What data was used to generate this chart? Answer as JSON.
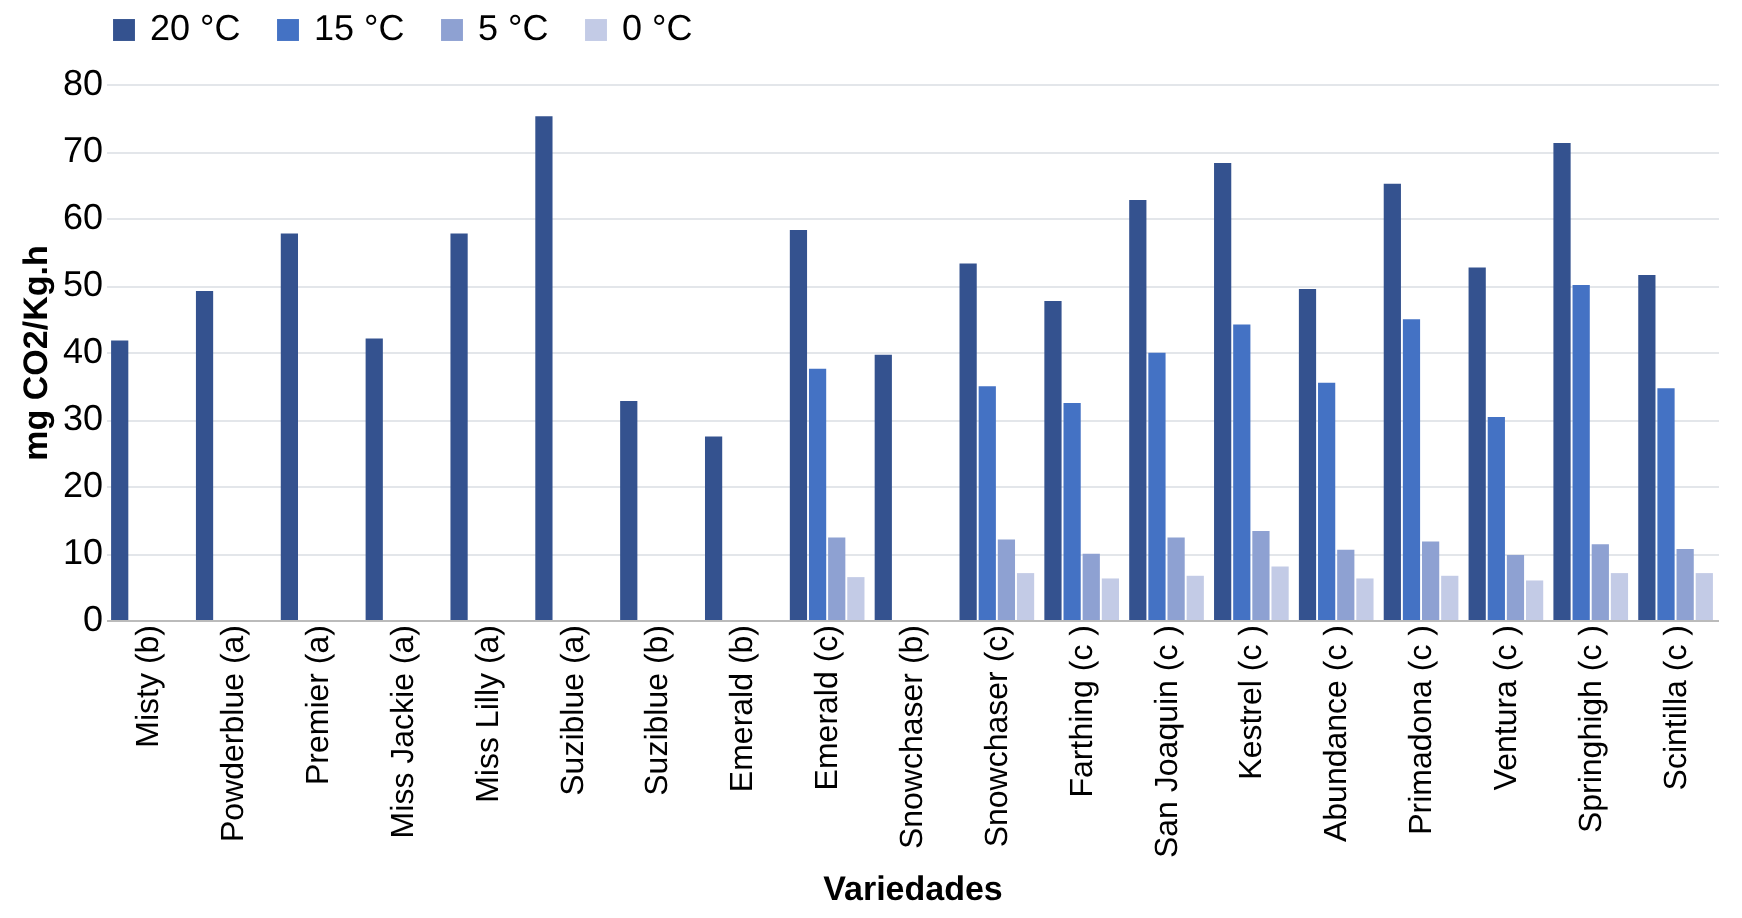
{
  "chart_data": {
    "type": "bar",
    "xlabel": "Variedades",
    "ylabel": "mg CO2/Kg.h",
    "categories": [
      "Misty (b)",
      "Powderblue  (a)",
      "Premier  (a)",
      "Miss Jackie  (a)",
      "Miss Lilly  (a)",
      "Suziblue (a)",
      "Suziblue (b)",
      "Emerald (b)",
      "Emerald (c)",
      "Snowchaser (b)",
      "Snowchaser (c)",
      "Farthing (c )",
      "San Joaquin (c )",
      "Kestrel (c )",
      "Abundance (c )",
      "Primadona (c )",
      "Ventura (c )",
      "Springhigh (c )",
      "Scintilla (c )"
    ],
    "series": [
      {
        "name": "20 °C",
        "color": "#34528f",
        "values": [
          41.7,
          49.1,
          57.7,
          42,
          57.7,
          75.2,
          32.7,
          27.4,
          58.2,
          39.6,
          53.2,
          47.6,
          62.7,
          68.2,
          49.4,
          65.1,
          52.6,
          71.2,
          51.5
        ]
      },
      {
        "name": "15 °C",
        "color": "#4472c4",
        "values": [
          null,
          null,
          null,
          null,
          null,
          null,
          null,
          null,
          37.5,
          null,
          34.9,
          32.4,
          39.9,
          44.1,
          35.4,
          44.9,
          30.3,
          50,
          34.6
        ]
      },
      {
        "name": "5 °C",
        "color": "#8ea1d2",
        "values": [
          null,
          null,
          null,
          null,
          null,
          null,
          null,
          null,
          12.3,
          null,
          12,
          9.9,
          12.3,
          13.3,
          10.5,
          11.7,
          9.7,
          11.3,
          10.6
        ]
      },
      {
        "name": "0 °C",
        "color": "#c3cbe6",
        "values": [
          null,
          null,
          null,
          null,
          null,
          null,
          null,
          null,
          6.4,
          null,
          7,
          6.2,
          6.6,
          8,
          6.2,
          6.6,
          5.9,
          7,
          7
        ]
      }
    ],
    "ylim": [
      0,
      80
    ],
    "yticks": [
      0,
      10,
      20,
      30,
      40,
      50,
      60,
      70,
      80
    ],
    "grid": "y",
    "legend": "top"
  }
}
